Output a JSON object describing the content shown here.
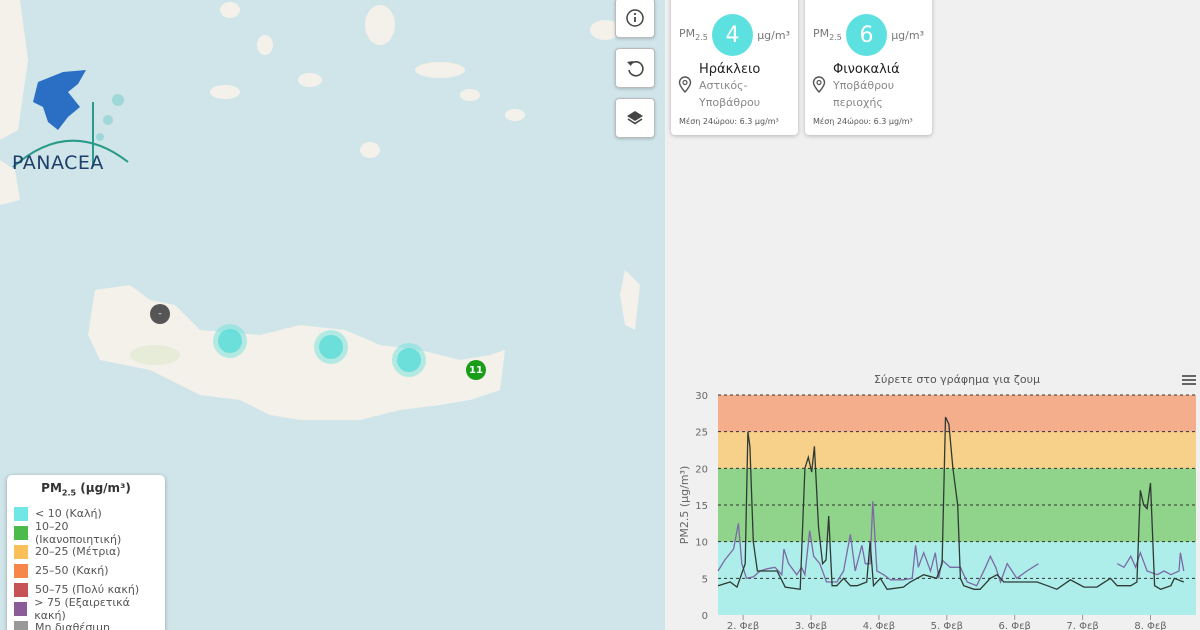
{
  "map": {
    "logo_text": "PANACEA",
    "buttons": [
      {
        "icon": "info-icon"
      },
      {
        "icon": "reset-icon"
      },
      {
        "icon": "layers-icon"
      }
    ],
    "markers": [
      {
        "type": "unavailable",
        "label": "-",
        "color": "#555555"
      },
      {
        "type": "cluster",
        "color": "#5de1e0"
      },
      {
        "type": "cluster",
        "color": "#5de1e0"
      },
      {
        "type": "cluster",
        "color": "#5de1e0"
      },
      {
        "type": "station",
        "label": "11",
        "color": "#1a9e1a"
      }
    ]
  },
  "legend": {
    "title_pm": "PM",
    "title_sub": "2.5",
    "title_unit": " (μg/m³)",
    "items": [
      {
        "label": "< 10 (Καλή)",
        "color": "#70e6e6"
      },
      {
        "label": "10–20 (Ικανοποιητική)",
        "color": "#4cbb4c"
      },
      {
        "label": "20–25 (Μέτρια)",
        "color": "#f9c05a"
      },
      {
        "label": "25–50 (Κακή)",
        "color": "#f6864a"
      },
      {
        "label": "50–75 (Πολύ κακή)",
        "color": "#c65454"
      },
      {
        "label": "> 75 (Εξαιρετικά κακή)",
        "color": "#8a5c99"
      },
      {
        "label": "Μη διαθέσιμη",
        "color": "#999999"
      }
    ]
  },
  "stations": [
    {
      "pm": "PM",
      "sub": "2.5",
      "value": "4",
      "unit": "μg/m³",
      "name": "Ηράκλειο",
      "type": [
        "Αστικός-",
        "Υποβάθρου"
      ],
      "avg": "Μέση 24ώρου: 6.3 μg/m³"
    },
    {
      "pm": "PM",
      "sub": "2.5",
      "value": "6",
      "unit": "μg/m³",
      "name": "Φινοκαλιά",
      "type": [
        "Υποβάθρου",
        "περιοχής"
      ],
      "avg": "Μέση 24ώρου: 6.3 μg/m³"
    }
  ],
  "chart_data": {
    "type": "line",
    "title": "Σύρετε στο γράφημα για ζουμ",
    "ylabel": "PM2.5 (μg/m³)",
    "ylim": [
      0,
      30
    ],
    "yticks": [
      0,
      5,
      10,
      15,
      20,
      25,
      30
    ],
    "xlim": [
      1.63,
      8.67
    ],
    "xticks": [
      {
        "v": 2,
        "label": "2. Φεβ"
      },
      {
        "v": 3,
        "label": "3. Φεβ"
      },
      {
        "v": 4,
        "label": "4. Φεβ"
      },
      {
        "v": 5,
        "label": "5. Φεβ"
      },
      {
        "v": 6,
        "label": "6. Φεβ"
      },
      {
        "v": 7,
        "label": "7. Φεβ"
      },
      {
        "v": 8,
        "label": "8. Φεβ"
      }
    ],
    "x_unit": "day of February",
    "bands": [
      {
        "from": 0,
        "to": 10,
        "color": "#aeeeea"
      },
      {
        "from": 10,
        "to": 20,
        "color": "#8fd48a"
      },
      {
        "from": 20,
        "to": 25,
        "color": "#f7d08a"
      },
      {
        "from": 25,
        "to": 30,
        "color": "#f5ae8c"
      }
    ],
    "menu_icon": "hamburger-icon",
    "series": [
      {
        "color": "#2e3a34",
        "points": [
          [
            1.63,
            4
          ],
          [
            1.81,
            4.5
          ],
          [
            1.91,
            3.8
          ],
          [
            2.03,
            7
          ],
          [
            2.07,
            25
          ],
          [
            2.1,
            23
          ],
          [
            2.15,
            10
          ],
          [
            2.21,
            6
          ],
          [
            2.35,
            6
          ],
          [
            2.5,
            6
          ],
          [
            2.62,
            3.8
          ],
          [
            2.84,
            3.5
          ],
          [
            2.91,
            20
          ],
          [
            2.96,
            21.5
          ],
          [
            3.01,
            19.5
          ],
          [
            3.05,
            23
          ],
          [
            3.11,
            12
          ],
          [
            3.17,
            7
          ],
          [
            3.22,
            7.5
          ],
          [
            3.26,
            13.5
          ],
          [
            3.31,
            4
          ],
          [
            3.38,
            4
          ],
          [
            3.48,
            5
          ],
          [
            3.58,
            4
          ],
          [
            3.68,
            4
          ],
          [
            3.82,
            4.5
          ],
          [
            3.87,
            10
          ],
          [
            3.92,
            4
          ],
          [
            4.02,
            5
          ],
          [
            4.12,
            3.5
          ],
          [
            4.36,
            3.8
          ],
          [
            4.46,
            4.5
          ],
          [
            4.66,
            5.5
          ],
          [
            4.85,
            5
          ],
          [
            4.93,
            7
          ],
          [
            4.98,
            27
          ],
          [
            5.03,
            26
          ],
          [
            5.09,
            20
          ],
          [
            5.16,
            15
          ],
          [
            5.2,
            5
          ],
          [
            5.25,
            4
          ],
          [
            5.4,
            3.5
          ],
          [
            5.49,
            3.5
          ],
          [
            5.64,
            5
          ],
          [
            5.74,
            5.5
          ],
          [
            5.84,
            4.5
          ],
          [
            5.99,
            4.5
          ],
          [
            6.13,
            4.5
          ],
          [
            6.33,
            4.5
          ],
          [
            6.48,
            4
          ],
          [
            6.62,
            3.5
          ],
          [
            6.82,
            4.8
          ],
          [
            7.02,
            3.8
          ],
          [
            7.21,
            3.8
          ],
          [
            7.41,
            5
          ],
          [
            7.51,
            4
          ],
          [
            7.71,
            4
          ],
          [
            7.8,
            4.5
          ],
          [
            7.85,
            17
          ],
          [
            7.9,
            15
          ],
          [
            7.95,
            14.5
          ],
          [
            8.0,
            18
          ],
          [
            8.06,
            4
          ],
          [
            8.15,
            3.5
          ],
          [
            8.3,
            4
          ],
          [
            8.35,
            5
          ],
          [
            8.49,
            4.5
          ]
        ]
      },
      {
        "color": "#7b6aa5",
        "points": [
          [
            1.63,
            6
          ],
          [
            1.73,
            7.5
          ],
          [
            1.86,
            9
          ],
          [
            1.93,
            12.5
          ],
          [
            1.98,
            7
          ],
          [
            2.05,
            5
          ],
          [
            2.15,
            5.2
          ],
          [
            2.25,
            6
          ],
          [
            2.35,
            6.3
          ],
          [
            2.47,
            6.5
          ],
          [
            2.57,
            5.5
          ],
          [
            2.6,
            9
          ],
          [
            2.67,
            7
          ],
          [
            2.79,
            5.5
          ],
          [
            2.86,
            6.5
          ],
          [
            2.91,
            5.5
          ],
          [
            2.98,
            11.5
          ],
          [
            3.04,
            8
          ],
          [
            3.13,
            7
          ],
          [
            3.23,
            4.5
          ],
          [
            3.38,
            4.5
          ],
          [
            3.48,
            6
          ],
          [
            3.58,
            11
          ],
          [
            3.65,
            6
          ],
          [
            3.75,
            9.5
          ],
          [
            3.8,
            7
          ],
          [
            3.87,
            7
          ],
          [
            3.91,
            15.5
          ],
          [
            3.97,
            6
          ],
          [
            4.07,
            5.5
          ],
          [
            4.17,
            4.8
          ],
          [
            4.36,
            4.8
          ],
          [
            4.49,
            5
          ],
          [
            4.54,
            9.5
          ],
          [
            4.58,
            6.5
          ],
          [
            4.66,
            8.5
          ],
          [
            4.76,
            6
          ],
          [
            4.83,
            8.5
          ],
          [
            4.88,
            5
          ],
          [
            4.93,
            7.5
          ],
          [
            5.05,
            6.5
          ],
          [
            5.2,
            6.5
          ],
          [
            5.3,
            4.5
          ],
          [
            5.44,
            4
          ],
          [
            5.57,
            6.5
          ],
          [
            5.64,
            8
          ],
          [
            5.72,
            6.5
          ],
          [
            5.79,
            4.5
          ],
          [
            5.89,
            7
          ],
          [
            6.03,
            5
          ],
          [
            6.18,
            6
          ],
          [
            6.35,
            7
          ],
          null,
          [
            7.51,
            7
          ],
          [
            7.61,
            6.5
          ],
          [
            7.71,
            8
          ],
          [
            7.78,
            6.5
          ],
          [
            7.85,
            8.5
          ],
          [
            7.95,
            6
          ],
          [
            8.1,
            5.5
          ],
          [
            8.2,
            6
          ],
          [
            8.3,
            5.5
          ],
          [
            8.42,
            6
          ],
          [
            8.44,
            8.5
          ],
          [
            8.49,
            6
          ]
        ]
      }
    ]
  }
}
